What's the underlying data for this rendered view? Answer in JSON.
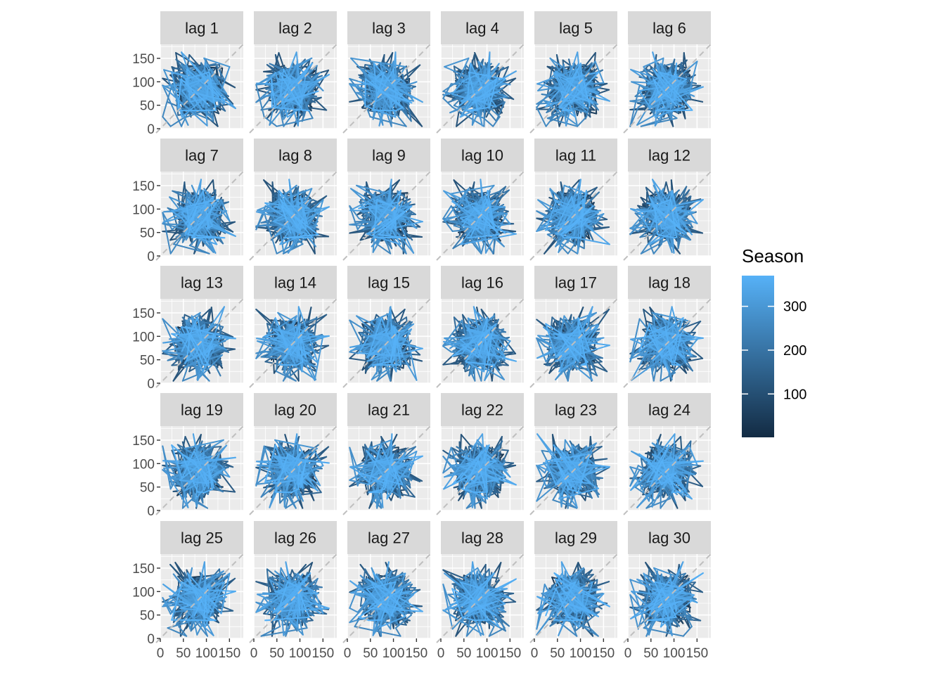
{
  "chart_data": {
    "type": "line",
    "chart_kind": "lag plot facets (path segments)",
    "facets": [
      "lag 1",
      "lag 2",
      "lag 3",
      "lag 4",
      "lag 5",
      "lag 6",
      "lag 7",
      "lag 8",
      "lag 9",
      "lag 10",
      "lag 11",
      "lag 12",
      "lag 13",
      "lag 14",
      "lag 15",
      "lag 16",
      "lag 17",
      "lag 18",
      "lag 19",
      "lag 20",
      "lag 21",
      "lag 22",
      "lag 23",
      "lag 24",
      "lag 25",
      "lag 26",
      "lag 27",
      "lag 28",
      "lag 29",
      "lag 30"
    ],
    "facet_layout": {
      "rows": 5,
      "cols": 6
    },
    "x_ticks": [
      "0",
      "50",
      "100",
      "150"
    ],
    "x_tick_values": [
      0,
      50,
      100,
      150
    ],
    "y_ticks": [
      "0",
      "50",
      "100",
      "150"
    ],
    "y_tick_values": [
      0,
      50,
      100,
      150
    ],
    "xlim": [
      0,
      180
    ],
    "ylim": [
      0,
      180
    ],
    "reference_line": "y = x (dashed diagonal)",
    "grid": true,
    "legend": {
      "title": "Season",
      "position": "right",
      "labels": [
        "300",
        "200",
        "100"
      ],
      "label_values": [
        300,
        200,
        100
      ],
      "range": [
        1,
        370
      ],
      "color_low": "#132B43",
      "color_high": "#56B1F7"
    },
    "series_note": "Each facet plots value(t) vs value(t - lag), colored by Season (observation index 1-370)."
  },
  "colors": {
    "panel_bg": "#ebebeb",
    "grid_major": "#ffffff",
    "strip_bg": "#d9d9d9",
    "reference_line": "#bfbfbf"
  }
}
